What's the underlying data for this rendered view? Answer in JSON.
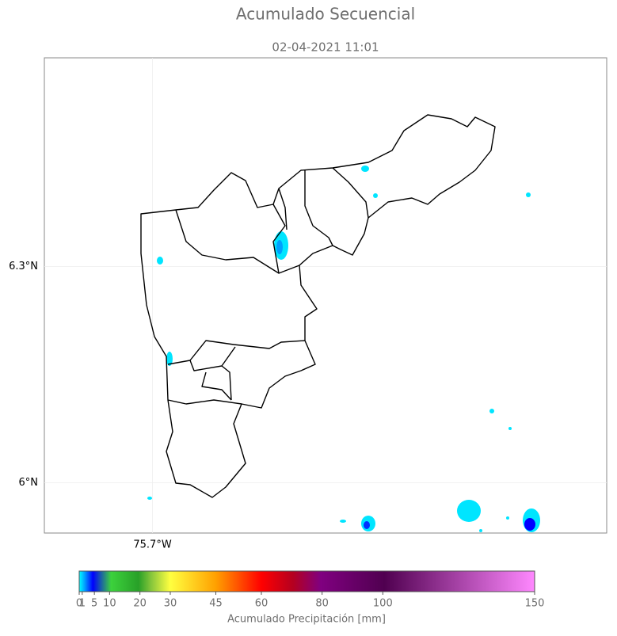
{
  "map": {
    "title": "Acumulado Secuencial",
    "subtitle": "02-04-2021 11:01",
    "latlim": [
      5.93,
      6.59
    ],
    "lonlim": [
      -75.85,
      -75.07
    ],
    "lat_ticks": [
      {
        "value": 6.3,
        "label": "6.3°N"
      },
      {
        "value": 6,
        "label": "6°N"
      }
    ],
    "lon_ticks": [
      {
        "value": -75.7,
        "label": "75.7°W"
      }
    ],
    "grid": true
  },
  "colorbar": {
    "label": "Acumulado Precipitación [mm]",
    "lim": [
      0,
      150
    ],
    "ticks": [
      0,
      1,
      5,
      10,
      20,
      30,
      45,
      60,
      80,
      100,
      150
    ]
  }
}
